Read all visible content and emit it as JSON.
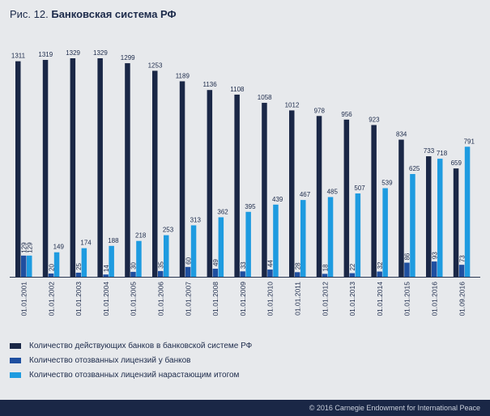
{
  "title_prefix": "Рис. 12.",
  "title_main": "Банковская система РФ",
  "footer": "© 2016 Carnegie Endowment for International Peace",
  "chart_data": {
    "type": "bar",
    "categories": [
      "01.01.2001",
      "01.01.2002",
      "01.01.2003",
      "01.01.2004",
      "01.01.2005",
      "01.01.2006",
      "01.01.2007",
      "01.01.2008",
      "01.01.2009",
      "01.01.2010",
      "01.01.2011",
      "01.01.2012",
      "01.01.2013",
      "01.01.2014",
      "01.01.2015",
      "01.01.2016",
      "01.09.2016"
    ],
    "series": [
      {
        "name": "Количество действующих банков в банковской системе РФ",
        "color": "#1a2746",
        "values": [
          1311,
          1319,
          1329,
          1329,
          1299,
          1253,
          1189,
          1136,
          1108,
          1058,
          1012,
          978,
          956,
          923,
          834,
          733,
          659
        ]
      },
      {
        "name": "Количество отозванных лицензий у банков",
        "color": "#1f4fa0",
        "values": [
          129,
          20,
          25,
          14,
          30,
          35,
          60,
          49,
          33,
          44,
          28,
          18,
          22,
          32,
          86,
          93,
          73
        ]
      },
      {
        "name": "Количество отозванных лицензий нарастающим итогом",
        "color": "#1e9be0",
        "values": [
          129,
          149,
          174,
          188,
          218,
          253,
          313,
          362,
          395,
          439,
          467,
          485,
          507,
          539,
          625,
          718,
          791
        ]
      }
    ],
    "legend_position": "bottom-left",
    "grid": false
  }
}
